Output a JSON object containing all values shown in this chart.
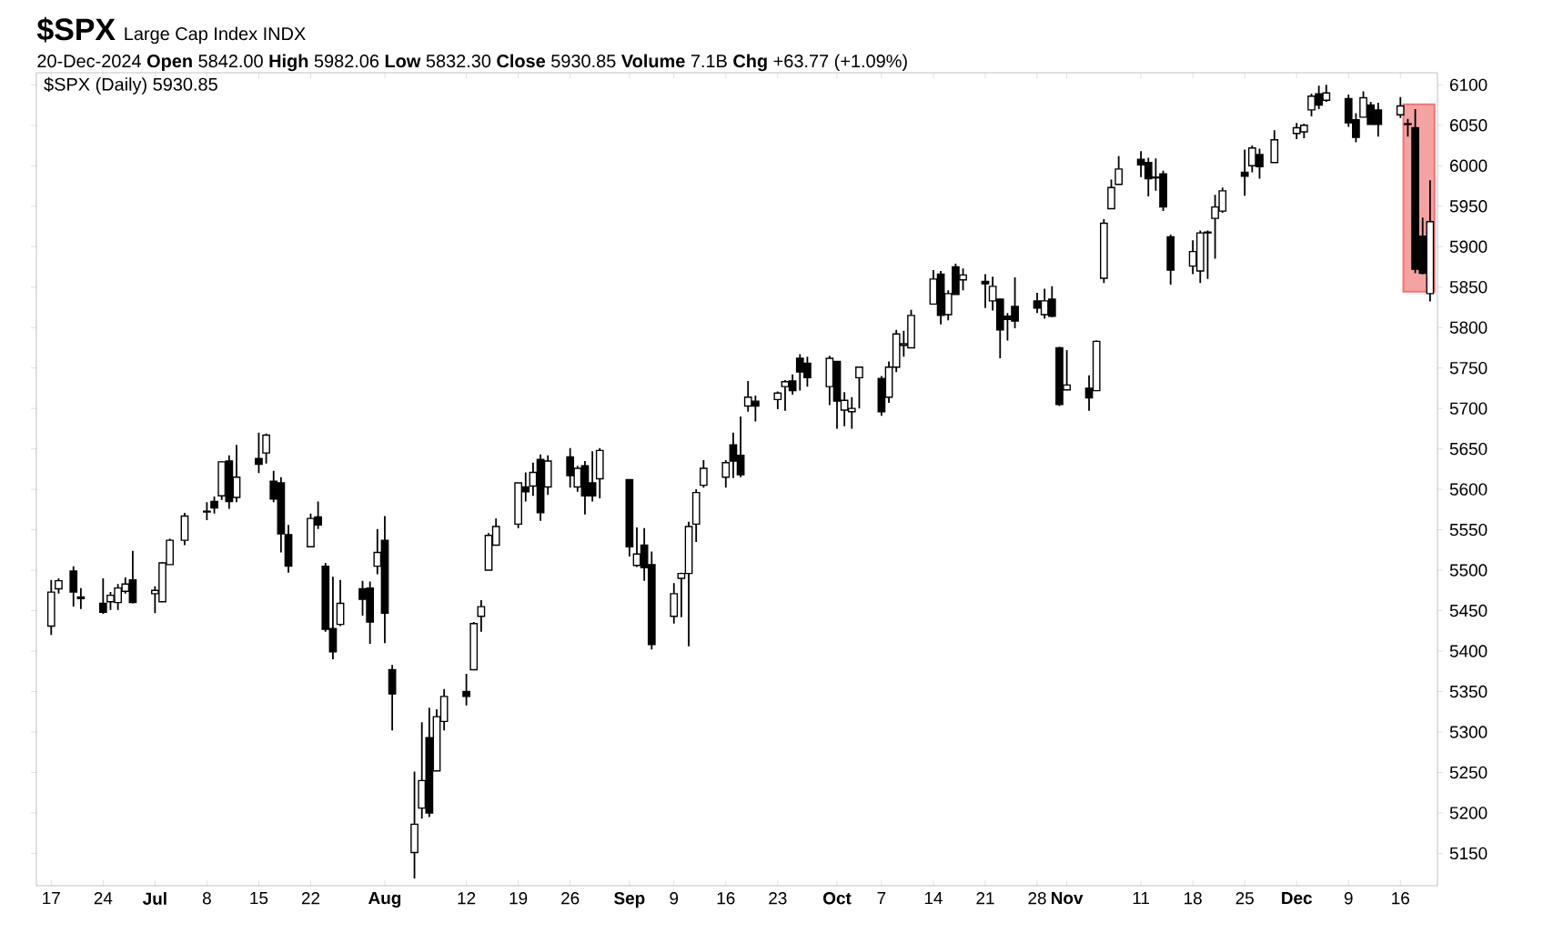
{
  "chart_data": {
    "type": "candlestick",
    "title": "$SPX",
    "subtitle": "Large Cap Index INDX",
    "annotations": [
      "20-Dec-2024 **Open** 5842.00 **High** 5982.06 **Low** 5832.30 **Close** 5930.85 **Volume** 7.1B **Chg** +63.77 (+1.09%)",
      "$SPX (Daily) 5930.85"
    ],
    "x": [
      "2024-06-17",
      "2024-06-18",
      "2024-06-20",
      "2024-06-21",
      "2024-06-24",
      "2024-06-25",
      "2024-06-26",
      "2024-06-27",
      "2024-06-28",
      "2024-07-01",
      "2024-07-02",
      "2024-07-03",
      "2024-07-05",
      "2024-07-08",
      "2024-07-09",
      "2024-07-10",
      "2024-07-11",
      "2024-07-12",
      "2024-07-15",
      "2024-07-16",
      "2024-07-17",
      "2024-07-18",
      "2024-07-19",
      "2024-07-22",
      "2024-07-23",
      "2024-07-24",
      "2024-07-25",
      "2024-07-26",
      "2024-07-29",
      "2024-07-30",
      "2024-07-31",
      "2024-08-01",
      "2024-08-02",
      "2024-08-05",
      "2024-08-06",
      "2024-08-07",
      "2024-08-08",
      "2024-08-09",
      "2024-08-12",
      "2024-08-13",
      "2024-08-14",
      "2024-08-15",
      "2024-08-16",
      "2024-08-19",
      "2024-08-20",
      "2024-08-21",
      "2024-08-22",
      "2024-08-23",
      "2024-08-26",
      "2024-08-27",
      "2024-08-28",
      "2024-08-29",
      "2024-08-30",
      "2024-09-03",
      "2024-09-04",
      "2024-09-05",
      "2024-09-06",
      "2024-09-09",
      "2024-09-10",
      "2024-09-11",
      "2024-09-12",
      "2024-09-13",
      "2024-09-16",
      "2024-09-17",
      "2024-09-18",
      "2024-09-19",
      "2024-09-20",
      "2024-09-23",
      "2024-09-24",
      "2024-09-25",
      "2024-09-26",
      "2024-09-27",
      "2024-09-30",
      "2024-10-01",
      "2024-10-02",
      "2024-10-03",
      "2024-10-04",
      "2024-10-07",
      "2024-10-08",
      "2024-10-09",
      "2024-10-10",
      "2024-10-11",
      "2024-10-14",
      "2024-10-15",
      "2024-10-16",
      "2024-10-17",
      "2024-10-18",
      "2024-10-21",
      "2024-10-22",
      "2024-10-23",
      "2024-10-24",
      "2024-10-25",
      "2024-10-28",
      "2024-10-29",
      "2024-10-30",
      "2024-10-31",
      "2024-11-01",
      "2024-11-04",
      "2024-11-05",
      "2024-11-06",
      "2024-11-07",
      "2024-11-08",
      "2024-11-11",
      "2024-11-12",
      "2024-11-13",
      "2024-11-14",
      "2024-11-15",
      "2024-11-18",
      "2024-11-19",
      "2024-11-20",
      "2024-11-21",
      "2024-11-22",
      "2024-11-25",
      "2024-11-26",
      "2024-11-27",
      "2024-11-29",
      "2024-12-02",
      "2024-12-03",
      "2024-12-04",
      "2024-12-05",
      "2024-12-06",
      "2024-12-09",
      "2024-12-10",
      "2024-12-11",
      "2024-12-12",
      "2024-12-13",
      "2024-12-16",
      "2024-12-17",
      "2024-12-18",
      "2024-12-19",
      "2024-12-20"
    ],
    "ohlc": [
      [
        5431,
        5488,
        5420,
        5473
      ],
      [
        5477,
        5490,
        5471,
        5487
      ],
      [
        5499,
        5505,
        5455,
        5473
      ],
      [
        5467,
        5478,
        5452,
        5465
      ],
      [
        5459,
        5490,
        5446,
        5448
      ],
      [
        5461,
        5473,
        5451,
        5469
      ],
      [
        5460,
        5483,
        5451,
        5478
      ],
      [
        5474,
        5491,
        5471,
        5483
      ],
      [
        5488,
        5524,
        5459,
        5460
      ],
      [
        5471,
        5480,
        5447,
        5475
      ],
      [
        5461,
        5510,
        5461,
        5509
      ],
      [
        5507,
        5539,
        5507,
        5537
      ],
      [
        5537,
        5571,
        5531,
        5567
      ],
      [
        5572,
        5584,
        5562,
        5573
      ],
      [
        5585,
        5591,
        5570,
        5577
      ],
      [
        5592,
        5635,
        5587,
        5634
      ],
      [
        5635,
        5642,
        5576,
        5585
      ],
      [
        5590,
        5655,
        5584,
        5615
      ],
      [
        5638,
        5670,
        5620,
        5631
      ],
      [
        5645,
        5669,
        5632,
        5667
      ],
      [
        5610,
        5623,
        5584,
        5588
      ],
      [
        5608,
        5615,
        5522,
        5545
      ],
      [
        5544,
        5556,
        5497,
        5505
      ],
      [
        5529,
        5570,
        5529,
        5564
      ],
      [
        5566,
        5585,
        5551,
        5556
      ],
      [
        5505,
        5509,
        5424,
        5427
      ],
      [
        5428,
        5492,
        5390,
        5399
      ],
      [
        5433,
        5488,
        5431,
        5459
      ],
      [
        5477,
        5487,
        5444,
        5464
      ],
      [
        5478,
        5486,
        5409,
        5436
      ],
      [
        5505,
        5551,
        5495,
        5522
      ],
      [
        5537,
        5567,
        5410,
        5447
      ],
      [
        5377,
        5383,
        5302,
        5347
      ],
      [
        5151,
        5251,
        5119,
        5186
      ],
      [
        5206,
        5312,
        5193,
        5240
      ],
      [
        5293,
        5330,
        5195,
        5200
      ],
      [
        5252,
        5328,
        5252,
        5319
      ],
      [
        5313,
        5353,
        5302,
        5344
      ],
      [
        5350,
        5372,
        5333,
        5344
      ],
      [
        5377,
        5436,
        5377,
        5434
      ],
      [
        5443,
        5463,
        5424,
        5455
      ],
      [
        5500,
        5546,
        5500,
        5543
      ],
      [
        5531,
        5564,
        5531,
        5554
      ],
      [
        5557,
        5608,
        5552,
        5608
      ],
      [
        5603,
        5621,
        5585,
        5597
      ],
      [
        5604,
        5633,
        5592,
        5621
      ],
      [
        5637,
        5643,
        5561,
        5571
      ],
      [
        5603,
        5642,
        5593,
        5635
      ],
      [
        5640,
        5651,
        5602,
        5617
      ],
      [
        5603,
        5629,
        5597,
        5626
      ],
      [
        5629,
        5635,
        5569,
        5592
      ],
      [
        5608,
        5647,
        5585,
        5592
      ],
      [
        5613,
        5651,
        5589,
        5648
      ],
      [
        5612,
        5612,
        5517,
        5529
      ],
      [
        5506,
        5553,
        5504,
        5520
      ],
      [
        5531,
        5552,
        5487,
        5503
      ],
      [
        5507,
        5523,
        5402,
        5408
      ],
      [
        5443,
        5484,
        5434,
        5471
      ],
      [
        5490,
        5497,
        5442,
        5496
      ],
      [
        5496,
        5560,
        5406,
        5554
      ],
      [
        5557,
        5600,
        5535,
        5596
      ],
      [
        5605,
        5636,
        5602,
        5626
      ],
      [
        5615,
        5636,
        5602,
        5633
      ],
      [
        5655,
        5670,
        5614,
        5635
      ],
      [
        5642,
        5690,
        5615,
        5618
      ],
      [
        5703,
        5734,
        5696,
        5714
      ],
      [
        5709,
        5716,
        5684,
        5703
      ],
      [
        5711,
        5721,
        5699,
        5719
      ],
      [
        5727,
        5735,
        5697,
        5733
      ],
      [
        5734,
        5742,
        5717,
        5722
      ],
      [
        5762,
        5767,
        5722,
        5745
      ],
      [
        5756,
        5764,
        5727,
        5738
      ],
      [
        5727,
        5765,
        5704,
        5762
      ],
      [
        5758,
        5758,
        5675,
        5709
      ],
      [
        5698,
        5720,
        5678,
        5710
      ],
      [
        5696,
        5714,
        5675,
        5700
      ],
      [
        5738,
        5751,
        5700,
        5751
      ],
      [
        5737,
        5740,
        5691,
        5696
      ],
      [
        5714,
        5758,
        5707,
        5751
      ],
      [
        5751,
        5797,
        5745,
        5792
      ],
      [
        5778,
        5796,
        5764,
        5780
      ],
      [
        5775,
        5822,
        5775,
        5815
      ],
      [
        5829,
        5871,
        5829,
        5860
      ],
      [
        5866,
        5870,
        5804,
        5815
      ],
      [
        5816,
        5846,
        5809,
        5842
      ],
      [
        5875,
        5879,
        5841,
        5841
      ],
      [
        5859,
        5873,
        5846,
        5865
      ],
      [
        5857,
        5866,
        5824,
        5854
      ],
      [
        5833,
        5863,
        5821,
        5851
      ],
      [
        5835,
        5836,
        5762,
        5797
      ],
      [
        5814,
        5818,
        5784,
        5810
      ],
      [
        5826,
        5862,
        5799,
        5808
      ],
      [
        5833,
        5843,
        5818,
        5824
      ],
      [
        5816,
        5848,
        5811,
        5833
      ],
      [
        5835,
        5851,
        5813,
        5814
      ],
      [
        5775,
        5776,
        5703,
        5705
      ],
      [
        5723,
        5772,
        5723,
        5729
      ],
      [
        5725,
        5741,
        5697,
        5713
      ],
      [
        5722,
        5784,
        5722,
        5783
      ],
      [
        5861,
        5934,
        5855,
        5929
      ],
      [
        5947,
        5983,
        5947,
        5973
      ],
      [
        5977,
        6012,
        5977,
        5996
      ],
      [
        6008,
        6018,
        5986,
        6001
      ],
      [
        6004,
        6010,
        5962,
        5984
      ],
      [
        5986,
        6009,
        5969,
        5985
      ],
      [
        5990,
        5994,
        5944,
        5949
      ],
      [
        5912,
        5915,
        5853,
        5871
      ],
      [
        5876,
        5908,
        5866,
        5894
      ],
      [
        5870,
        5920,
        5855,
        5917
      ],
      [
        5918,
        5920,
        5860,
        5917
      ],
      [
        5935,
        5964,
        5885,
        5949
      ],
      [
        5944,
        5973,
        5942,
        5969
      ],
      [
        5992,
        6020,
        5963,
        5987
      ],
      [
        6000,
        6025,
        5992,
        6022
      ],
      [
        6014,
        6021,
        5984,
        5999
      ],
      [
        6004,
        6044,
        6004,
        6032
      ],
      [
        6040,
        6053,
        6033,
        6047
      ],
      [
        6042,
        6052,
        6034,
        6050
      ],
      [
        6069,
        6089,
        6061,
        6086
      ],
      [
        6089,
        6099,
        6070,
        6075
      ],
      [
        6081,
        6100,
        6079,
        6090
      ],
      [
        6083,
        6088,
        6048,
        6053
      ],
      [
        6057,
        6065,
        6029,
        6035
      ],
      [
        6060,
        6092,
        6060,
        6084
      ],
      [
        6075,
        6079,
        6051,
        6051
      ],
      [
        6069,
        6078,
        6036,
        6051
      ],
      [
        6063,
        6085,
        6059,
        6074
      ],
      [
        6052,
        6058,
        6036,
        6051
      ],
      [
        6047,
        6070,
        5867,
        5872
      ],
      [
        5913,
        5936,
        5866,
        5867
      ],
      [
        5842,
        5982.06,
        5832.3,
        5930.85
      ]
    ],
    "color": "#000000",
    "xlim": [
      "2024-06-15",
      "2024-12-21"
    ],
    "xticks": [
      {
        "value": "2024-06-17",
        "label": "17"
      },
      {
        "value": "2024-06-24",
        "label": "24"
      },
      {
        "value": "2024-07-01",
        "label": "**Jul**"
      },
      {
        "value": "2024-07-08",
        "label": "8"
      },
      {
        "value": "2024-07-15",
        "label": "15"
      },
      {
        "value": "2024-07-22",
        "label": "22"
      },
      {
        "value": "2024-08-01",
        "label": "**Aug**"
      },
      {
        "value": "2024-08-12",
        "label": "12"
      },
      {
        "value": "2024-08-19",
        "label": "19"
      },
      {
        "value": "2024-08-26",
        "label": "26"
      },
      {
        "value": "2024-09-03",
        "label": "**Sep**"
      },
      {
        "value": "2024-09-09",
        "label": "9"
      },
      {
        "value": "2024-09-16",
        "label": "16"
      },
      {
        "value": "2024-09-23",
        "label": "23"
      },
      {
        "value": "2024-10-01",
        "label": "**Oct**"
      },
      {
        "value": "2024-10-07",
        "label": "7"
      },
      {
        "value": "2024-10-14",
        "label": "14"
      },
      {
        "value": "2024-10-21",
        "label": "21"
      },
      {
        "value": "2024-10-28",
        "label": "28"
      },
      {
        "value": "2024-11-01",
        "label": "**Nov**"
      },
      {
        "value": "2024-11-11",
        "label": "11"
      },
      {
        "value": "2024-11-18",
        "label": "18"
      },
      {
        "value": "2024-11-25",
        "label": "25"
      },
      {
        "value": "2024-12-02",
        "label": "**Dec**"
      },
      {
        "value": "2024-12-09",
        "label": "9"
      },
      {
        "value": "2024-12-16",
        "label": "16"
      }
    ],
    "ylim": [
      5110,
      6115
    ],
    "yticks": [
      5150,
      5200,
      5250,
      5300,
      5350,
      5400,
      5450,
      5500,
      5550,
      5600,
      5650,
      5700,
      5750,
      5800,
      5850,
      5900,
      5950,
      6000,
      6050,
      6100
    ],
    "bands": [
      {
        "axis": "x",
        "from": "2024-12-17",
        "to": "2024-12-20",
        "color": "#f4a3a3"
      }
    ],
    "grid": false
  }
}
